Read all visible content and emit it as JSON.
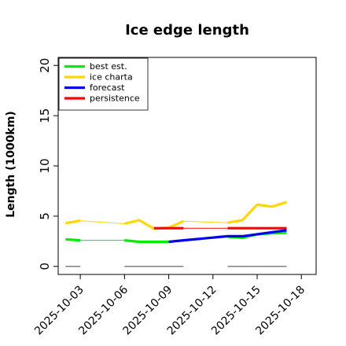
{
  "chart_data": {
    "type": "line",
    "title": "Ice edge length",
    "ylabel": "Length (1000km)",
    "xlabel": "",
    "ylim": [
      -0.8,
      20.8
    ],
    "yticks": [
      0,
      5,
      10,
      15,
      20
    ],
    "xlim": [
      "2025-10-01T12:00",
      "2025-10-19"
    ],
    "xticks": [
      {
        "date": "2025-10-03",
        "label": "2025-10-03",
        "color": "#000000"
      },
      {
        "date": "2025-10-06",
        "label": "2025-10-06",
        "color": "#000000"
      },
      {
        "date": "2025-10-09",
        "label": "2025-10-09",
        "color": "#228b22"
      },
      {
        "date": "2025-10-12",
        "label": "2025-10-12",
        "color": "#000000"
      },
      {
        "date": "2025-10-15",
        "label": "2025-10-15",
        "color": "#000000"
      },
      {
        "date": "2025-10-18",
        "label": "2025-10-18",
        "color": "#000000"
      }
    ],
    "legend_position": "top-left",
    "grid": false,
    "series": [
      {
        "name": "best est.",
        "color": "#00ee00",
        "points": [
          {
            "x": "2025-10-02",
            "y": 2.7
          },
          {
            "x": "2025-10-03",
            "y": 2.6
          },
          {
            "x": "2025-10-06",
            "y": 2.6
          },
          {
            "x": "2025-10-07",
            "y": 2.45
          },
          {
            "x": "2025-10-09",
            "y": 2.45
          },
          {
            "x": "2025-10-13",
            "y": 2.95
          },
          {
            "x": "2025-10-14",
            "y": 2.85
          },
          {
            "x": "2025-10-15",
            "y": 3.2
          },
          {
            "x": "2025-10-16",
            "y": 3.3
          },
          {
            "x": "2025-10-17",
            "y": 3.35
          }
        ],
        "segments": [
          [
            0,
            1
          ],
          [
            2,
            4
          ],
          [
            5,
            9
          ]
        ]
      },
      {
        "name": "ice charta",
        "color": "#ffd700",
        "points": [
          {
            "x": "2025-10-02",
            "y": 4.3
          },
          {
            "x": "2025-10-03",
            "y": 4.55
          },
          {
            "x": "2025-10-06",
            "y": 4.25
          },
          {
            "x": "2025-10-07",
            "y": 4.6
          },
          {
            "x": "2025-10-08",
            "y": 3.75
          },
          {
            "x": "2025-10-09",
            "y": 3.85
          },
          {
            "x": "2025-10-10",
            "y": 4.5
          },
          {
            "x": "2025-10-13",
            "y": 4.35
          },
          {
            "x": "2025-10-14",
            "y": 4.6
          },
          {
            "x": "2025-10-15",
            "y": 6.15
          },
          {
            "x": "2025-10-16",
            "y": 5.95
          },
          {
            "x": "2025-10-17",
            "y": 6.4
          }
        ],
        "segments": [
          [
            0,
            1
          ],
          [
            2,
            6
          ],
          [
            7,
            11
          ]
        ]
      },
      {
        "name": "forecast",
        "color": "#0000ee",
        "points": [
          {
            "x": "2025-10-09",
            "y": 2.45
          },
          {
            "x": "2025-10-10",
            "y": 2.6
          },
          {
            "x": "2025-10-13",
            "y": 3.0
          },
          {
            "x": "2025-10-14",
            "y": 3.0
          },
          {
            "x": "2025-10-15",
            "y": 3.2
          },
          {
            "x": "2025-10-16",
            "y": 3.4
          },
          {
            "x": "2025-10-17",
            "y": 3.6
          }
        ],
        "segments": [
          [
            0,
            6
          ]
        ]
      },
      {
        "name": "persistence",
        "color": "#ff0000",
        "points": [
          {
            "x": "2025-10-08",
            "y": 3.8
          },
          {
            "x": "2025-10-10",
            "y": 3.8
          },
          {
            "x": "2025-10-13",
            "y": 3.8
          },
          {
            "x": "2025-10-17",
            "y": 3.8
          }
        ],
        "segments": [
          [
            0,
            1
          ],
          [
            2,
            3
          ]
        ]
      }
    ],
    "baseline_marks": [
      {
        "start": "2025-10-02",
        "end": "2025-10-03",
        "y": 0
      },
      {
        "start": "2025-10-06",
        "end": "2025-10-10",
        "y": 0
      },
      {
        "start": "2025-10-13",
        "end": "2025-10-17",
        "y": 0
      }
    ],
    "colors": {
      "baseline_marks": "#808080"
    }
  }
}
